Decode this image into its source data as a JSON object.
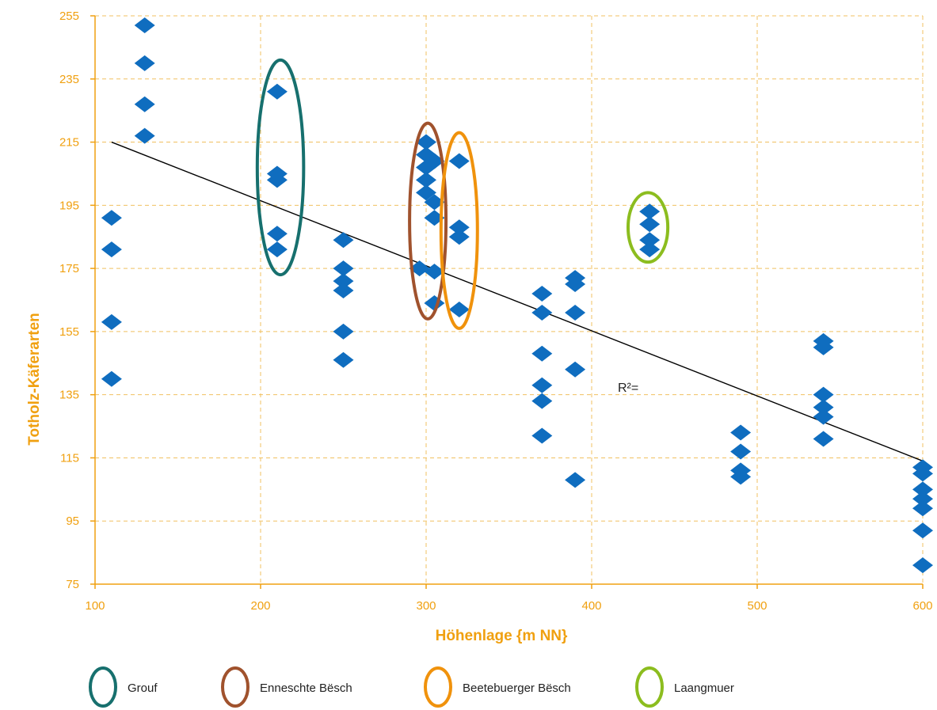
{
  "chart_data": {
    "type": "scatter",
    "title": "",
    "xlabel": "Höhenlage  {m NN}",
    "ylabel": "Totholz-Käferarten",
    "xlim": [
      100,
      600
    ],
    "ylim": [
      75,
      255
    ],
    "x_ticks": [
      "100",
      "200",
      "300",
      "400",
      "500",
      "600"
    ],
    "y_ticks": [
      "75",
      "95",
      "115",
      "135",
      "155",
      "175",
      "195",
      "215",
      "235",
      "255"
    ],
    "grid": true,
    "annotation": "R²=",
    "series": [
      {
        "marker": "diamond",
        "points": [
          {
            "x": 110,
            "y": 191
          },
          {
            "x": 110,
            "y": 181
          },
          {
            "x": 110,
            "y": 158
          },
          {
            "x": 110,
            "y": 140
          },
          {
            "x": 130,
            "y": 252
          },
          {
            "x": 130,
            "y": 240
          },
          {
            "x": 130,
            "y": 227
          },
          {
            "x": 130,
            "y": 217
          },
          {
            "x": 210,
            "y": 231
          },
          {
            "x": 210,
            "y": 205
          },
          {
            "x": 210,
            "y": 203
          },
          {
            "x": 210,
            "y": 186
          },
          {
            "x": 210,
            "y": 181
          },
          {
            "x": 250,
            "y": 184
          },
          {
            "x": 250,
            "y": 175
          },
          {
            "x": 250,
            "y": 171
          },
          {
            "x": 250,
            "y": 168
          },
          {
            "x": 250,
            "y": 155
          },
          {
            "x": 250,
            "y": 146
          },
          {
            "x": 296,
            "y": 175
          },
          {
            "x": 300,
            "y": 215
          },
          {
            "x": 300,
            "y": 211
          },
          {
            "x": 300,
            "y": 207
          },
          {
            "x": 300,
            "y": 203
          },
          {
            "x": 300,
            "y": 199
          },
          {
            "x": 305,
            "y": 209
          },
          {
            "x": 305,
            "y": 196
          },
          {
            "x": 305,
            "y": 191
          },
          {
            "x": 305,
            "y": 174
          },
          {
            "x": 305,
            "y": 164
          },
          {
            "x": 320,
            "y": 209
          },
          {
            "x": 320,
            "y": 188
          },
          {
            "x": 320,
            "y": 185
          },
          {
            "x": 320,
            "y": 162
          },
          {
            "x": 370,
            "y": 167
          },
          {
            "x": 370,
            "y": 161
          },
          {
            "x": 370,
            "y": 148
          },
          {
            "x": 370,
            "y": 138
          },
          {
            "x": 370,
            "y": 133
          },
          {
            "x": 370,
            "y": 122
          },
          {
            "x": 390,
            "y": 172
          },
          {
            "x": 390,
            "y": 170
          },
          {
            "x": 390,
            "y": 161
          },
          {
            "x": 390,
            "y": 143
          },
          {
            "x": 390,
            "y": 108
          },
          {
            "x": 435,
            "y": 193
          },
          {
            "x": 435,
            "y": 189
          },
          {
            "x": 435,
            "y": 184
          },
          {
            "x": 435,
            "y": 181
          },
          {
            "x": 490,
            "y": 123
          },
          {
            "x": 490,
            "y": 117
          },
          {
            "x": 490,
            "y": 111
          },
          {
            "x": 490,
            "y": 109
          },
          {
            "x": 540,
            "y": 152
          },
          {
            "x": 540,
            "y": 150
          },
          {
            "x": 540,
            "y": 135
          },
          {
            "x": 540,
            "y": 131
          },
          {
            "x": 540,
            "y": 128
          },
          {
            "x": 540,
            "y": 121
          },
          {
            "x": 600,
            "y": 112
          },
          {
            "x": 600,
            "y": 110
          },
          {
            "x": 600,
            "y": 105
          },
          {
            "x": 600,
            "y": 102
          },
          {
            "x": 600,
            "y": 99
          },
          {
            "x": 600,
            "y": 92
          },
          {
            "x": 600,
            "y": 81
          }
        ]
      }
    ],
    "trendline": {
      "x1": 110,
      "y1": 215,
      "x2": 600,
      "y2": 114
    },
    "groups": [
      {
        "label": "Grouf",
        "color": "#17706e",
        "cx": 212,
        "cy": 207,
        "rx": 14,
        "ry": 34
      },
      {
        "label": "Enneschte Bësch",
        "color": "#a0522d",
        "cx": 301,
        "cy": 190,
        "rx": 11,
        "ry": 31
      },
      {
        "label": "Beetebuerger Bësch",
        "color": "#f0920c",
        "cx": 320,
        "cy": 187,
        "rx": 11,
        "ry": 31
      },
      {
        "label": "Laangmuer",
        "color": "#8cbd1f",
        "cx": 434,
        "cy": 188,
        "rx": 12,
        "ry": 11
      }
    ],
    "colors": {
      "axis": "#f0a010",
      "grid": "#f0c060",
      "marker": "#0f6dbf",
      "trendline": "#000000"
    },
    "legend_position": "bottom"
  }
}
